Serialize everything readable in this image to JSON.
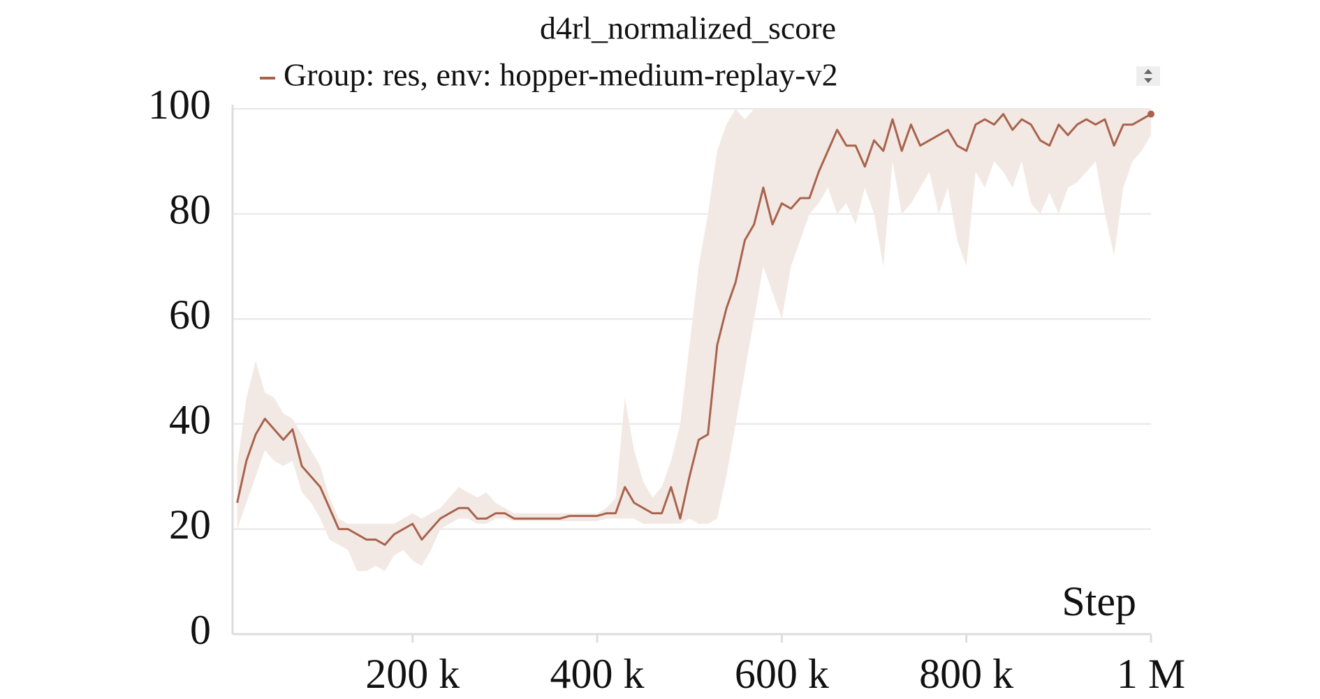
{
  "chart_data": {
    "type": "line",
    "title": "d4rl_normalized_score",
    "xlabel": "Step",
    "x": [
      10000,
      20000,
      30000,
      40000,
      50000,
      60000,
      70000,
      80000,
      90000,
      100000,
      110000,
      120000,
      130000,
      140000,
      150000,
      160000,
      170000,
      180000,
      190000,
      200000,
      210000,
      220000,
      230000,
      240000,
      250000,
      260000,
      270000,
      280000,
      290000,
      300000,
      310000,
      320000,
      330000,
      340000,
      350000,
      360000,
      370000,
      380000,
      390000,
      400000,
      410000,
      420000,
      430000,
      440000,
      450000,
      460000,
      470000,
      480000,
      490000,
      500000,
      510000,
      520000,
      530000,
      540000,
      550000,
      560000,
      570000,
      580000,
      590000,
      600000,
      610000,
      620000,
      630000,
      640000,
      650000,
      660000,
      670000,
      680000,
      690000,
      700000,
      710000,
      720000,
      730000,
      740000,
      750000,
      760000,
      770000,
      780000,
      790000,
      800000,
      810000,
      820000,
      830000,
      840000,
      850000,
      860000,
      870000,
      880000,
      890000,
      900000,
      910000,
      920000,
      930000,
      940000,
      950000,
      960000,
      970000,
      980000,
      990000,
      1000000
    ],
    "series": [
      {
        "name": "Group: res, env: hopper-medium-replay-v2",
        "color": "#a8634d",
        "band_color": "#f3e9e4",
        "values": [
          25,
          33,
          38,
          41,
          39,
          37,
          39,
          32,
          30,
          28,
          24,
          20,
          20,
          19,
          18,
          18,
          17,
          19,
          20,
          21,
          18,
          20,
          22,
          23,
          24,
          24,
          22,
          22,
          23,
          23,
          22,
          22,
          22,
          22,
          22,
          22,
          22.5,
          22.5,
          22.5,
          22.5,
          23,
          23,
          28,
          25,
          24,
          23,
          23,
          28,
          22,
          30,
          37,
          38,
          55,
          62,
          67,
          75,
          78,
          85,
          78,
          82,
          81,
          83,
          83,
          88,
          92,
          96,
          93,
          93,
          89,
          94,
          92,
          98,
          92,
          97,
          93,
          94,
          95,
          96,
          93,
          92,
          97,
          98,
          97,
          99,
          96,
          98,
          97,
          94,
          93,
          97,
          95,
          97,
          98,
          97,
          98,
          93,
          97,
          97,
          98,
          99
        ],
        "upper": [
          32,
          45,
          52,
          46,
          45,
          42,
          41,
          38,
          35,
          32,
          26,
          22,
          21,
          21,
          21,
          21,
          21,
          21,
          22,
          23,
          22,
          23,
          24,
          26,
          28,
          27,
          26,
          27,
          25,
          24,
          23,
          23,
          23,
          23,
          23,
          23,
          23,
          23,
          23,
          23,
          24,
          26,
          45,
          35,
          29,
          26,
          28,
          33,
          40,
          55,
          70,
          80,
          92,
          97,
          100,
          98,
          100,
          100,
          100,
          100,
          100,
          100,
          100,
          100,
          100,
          100,
          100,
          100,
          100,
          100,
          100,
          100,
          100,
          100,
          100,
          100,
          100,
          100,
          100,
          100,
          100,
          100,
          100,
          100,
          100,
          100,
          100,
          100,
          100,
          100,
          100,
          100,
          100,
          100,
          100,
          100,
          100,
          100,
          100,
          100
        ],
        "lower": [
          20,
          25,
          30,
          35,
          33,
          32,
          33,
          27,
          25,
          22,
          18,
          17,
          16,
          12,
          12,
          13,
          12,
          15,
          16,
          14,
          13,
          16,
          20,
          21,
          22,
          22,
          21,
          21,
          22,
          22,
          21.5,
          21.5,
          21.5,
          21.5,
          21.5,
          21.5,
          21.5,
          21.5,
          21.5,
          21.5,
          22,
          22,
          22,
          22,
          21,
          21,
          21,
          21,
          21,
          22,
          21,
          21,
          22,
          30,
          40,
          50,
          60,
          70,
          65,
          60,
          70,
          75,
          80,
          82,
          85,
          80,
          82,
          78,
          85,
          80,
          70,
          90,
          80,
          82,
          85,
          88,
          80,
          85,
          75,
          70,
          88,
          85,
          90,
          88,
          85,
          90,
          82,
          80,
          84,
          80,
          85,
          86,
          88,
          90,
          80,
          72,
          85,
          90,
          92,
          95
        ]
      }
    ],
    "xlim": [
      5000,
      1000000
    ],
    "xticks": [
      {
        "value": 200000,
        "label": "200 k"
      },
      {
        "value": 400000,
        "label": "400 k"
      },
      {
        "value": 600000,
        "label": "600 k"
      },
      {
        "value": 800000,
        "label": "800 k"
      },
      {
        "value": 1000000,
        "label": "1 M"
      }
    ],
    "ylim": [
      0,
      100
    ],
    "yticks": [
      0,
      20,
      40,
      60,
      80,
      100
    ],
    "grid": true
  }
}
